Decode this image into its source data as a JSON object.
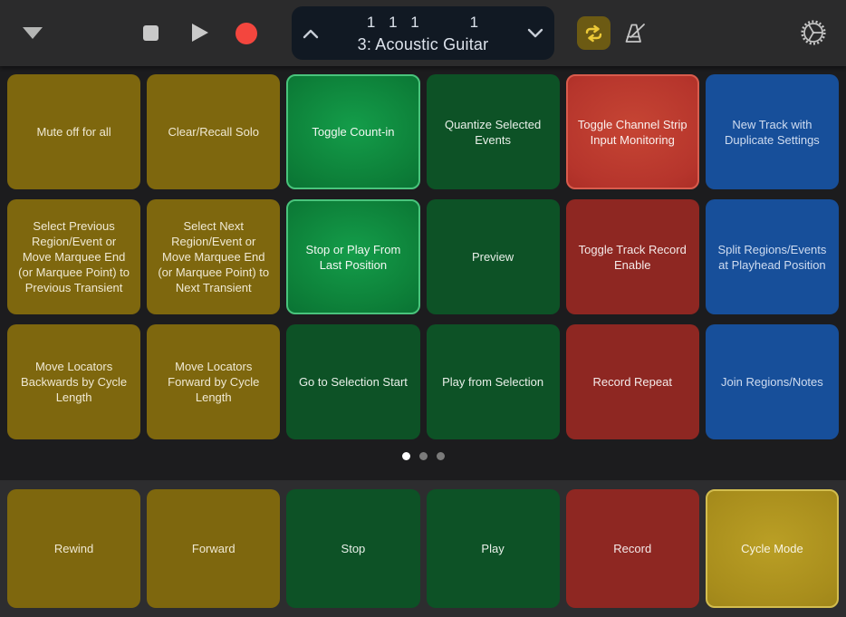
{
  "topbar": {
    "display": {
      "beat_position": "1 1 1    1",
      "track": "3: Acoustic Guitar"
    },
    "cycle_active": true,
    "record_color": "#f3463e",
    "cycle_icon_color": "#ecc937",
    "icons": {
      "left": "disclosure-down-triangle",
      "transport": [
        "stop",
        "play",
        "record"
      ],
      "display_left": "chevron-up",
      "display_right": "chevron-down",
      "right": [
        "cycle-loop",
        "metronome",
        "settings-gear"
      ]
    }
  },
  "grid": {
    "rows": 3,
    "cols": 6,
    "buttons": [
      {
        "label": "Mute off for all",
        "variant": "olive"
      },
      {
        "label": "Clear/Recall Solo",
        "variant": "olive"
      },
      {
        "label": "Toggle Count-in",
        "variant": "green-active"
      },
      {
        "label": "Quantize Selected Events",
        "variant": "green"
      },
      {
        "label": "Toggle Channel Strip Input Monitoring",
        "variant": "red-active"
      },
      {
        "label": "New Track with Duplicate Settings",
        "variant": "blue"
      },
      {
        "label": "Select Previous Region/Event or Move Marquee End (or Marquee Point) to Previous Transient",
        "variant": "olive"
      },
      {
        "label": "Select Next Region/Event or Move Marquee End (or Marquee Point) to Next Transient",
        "variant": "olive"
      },
      {
        "label": "Stop or Play From Last Position",
        "variant": "green-active"
      },
      {
        "label": "Preview",
        "variant": "green"
      },
      {
        "label": "Toggle Track Record Enable",
        "variant": "red"
      },
      {
        "label": "Split Regions/Events at Playhead Position",
        "variant": "blue"
      },
      {
        "label": "Move Locators Backwards by Cycle Length",
        "variant": "olive"
      },
      {
        "label": "Move Locators Forward by Cycle Length",
        "variant": "olive"
      },
      {
        "label": "Go to Selection Start",
        "variant": "green"
      },
      {
        "label": "Play from Selection",
        "variant": "green"
      },
      {
        "label": "Record Repeat",
        "variant": "red"
      },
      {
        "label": "Join Regions/Notes",
        "variant": "blue"
      }
    ],
    "pager": {
      "count": 3,
      "active": 0
    }
  },
  "bottom_row": {
    "buttons": [
      {
        "label": "Rewind",
        "variant": "olive"
      },
      {
        "label": "Forward",
        "variant": "olive"
      },
      {
        "label": "Stop",
        "variant": "green"
      },
      {
        "label": "Play",
        "variant": "green"
      },
      {
        "label": "Record",
        "variant": "red"
      },
      {
        "label": "Cycle Mode",
        "variant": "yellow-active"
      }
    ]
  },
  "colors": {
    "topbar_bg": "#2b2b2c",
    "main_bg": "#1c1c1e",
    "bottom_bg": "#2d2d2f",
    "lcd_bg": "#111923",
    "olive": "#7e670e",
    "green_dark": "#0d5226",
    "green_active": "#0d8039",
    "red_dark": "#8e2722",
    "red_active": "#b6352c",
    "blue": "#174f9a",
    "yellow_active": "#a88d1c"
  }
}
